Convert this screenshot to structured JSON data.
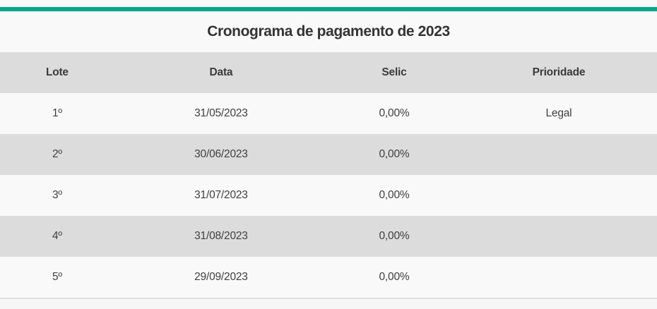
{
  "colors": {
    "accent": "#00A88A",
    "stripe_gray": "#DCDCDC",
    "row_light": "#F9F9F9"
  },
  "title": "Cronograma de pagamento de 2023",
  "table": {
    "columns": [
      "Lote",
      "Data",
      "Selic",
      "Prioridade"
    ],
    "rows": [
      [
        "1º",
        "31/05/2023",
        "0,00%",
        "Legal"
      ],
      [
        "2º",
        "30/06/2023",
        "0,00%",
        ""
      ],
      [
        "3º",
        "31/07/2023",
        "0,00%",
        ""
      ],
      [
        "4º",
        "31/08/2023",
        "0,00%",
        ""
      ],
      [
        "5º",
        "29/09/2023",
        "0,00%",
        ""
      ]
    ]
  }
}
